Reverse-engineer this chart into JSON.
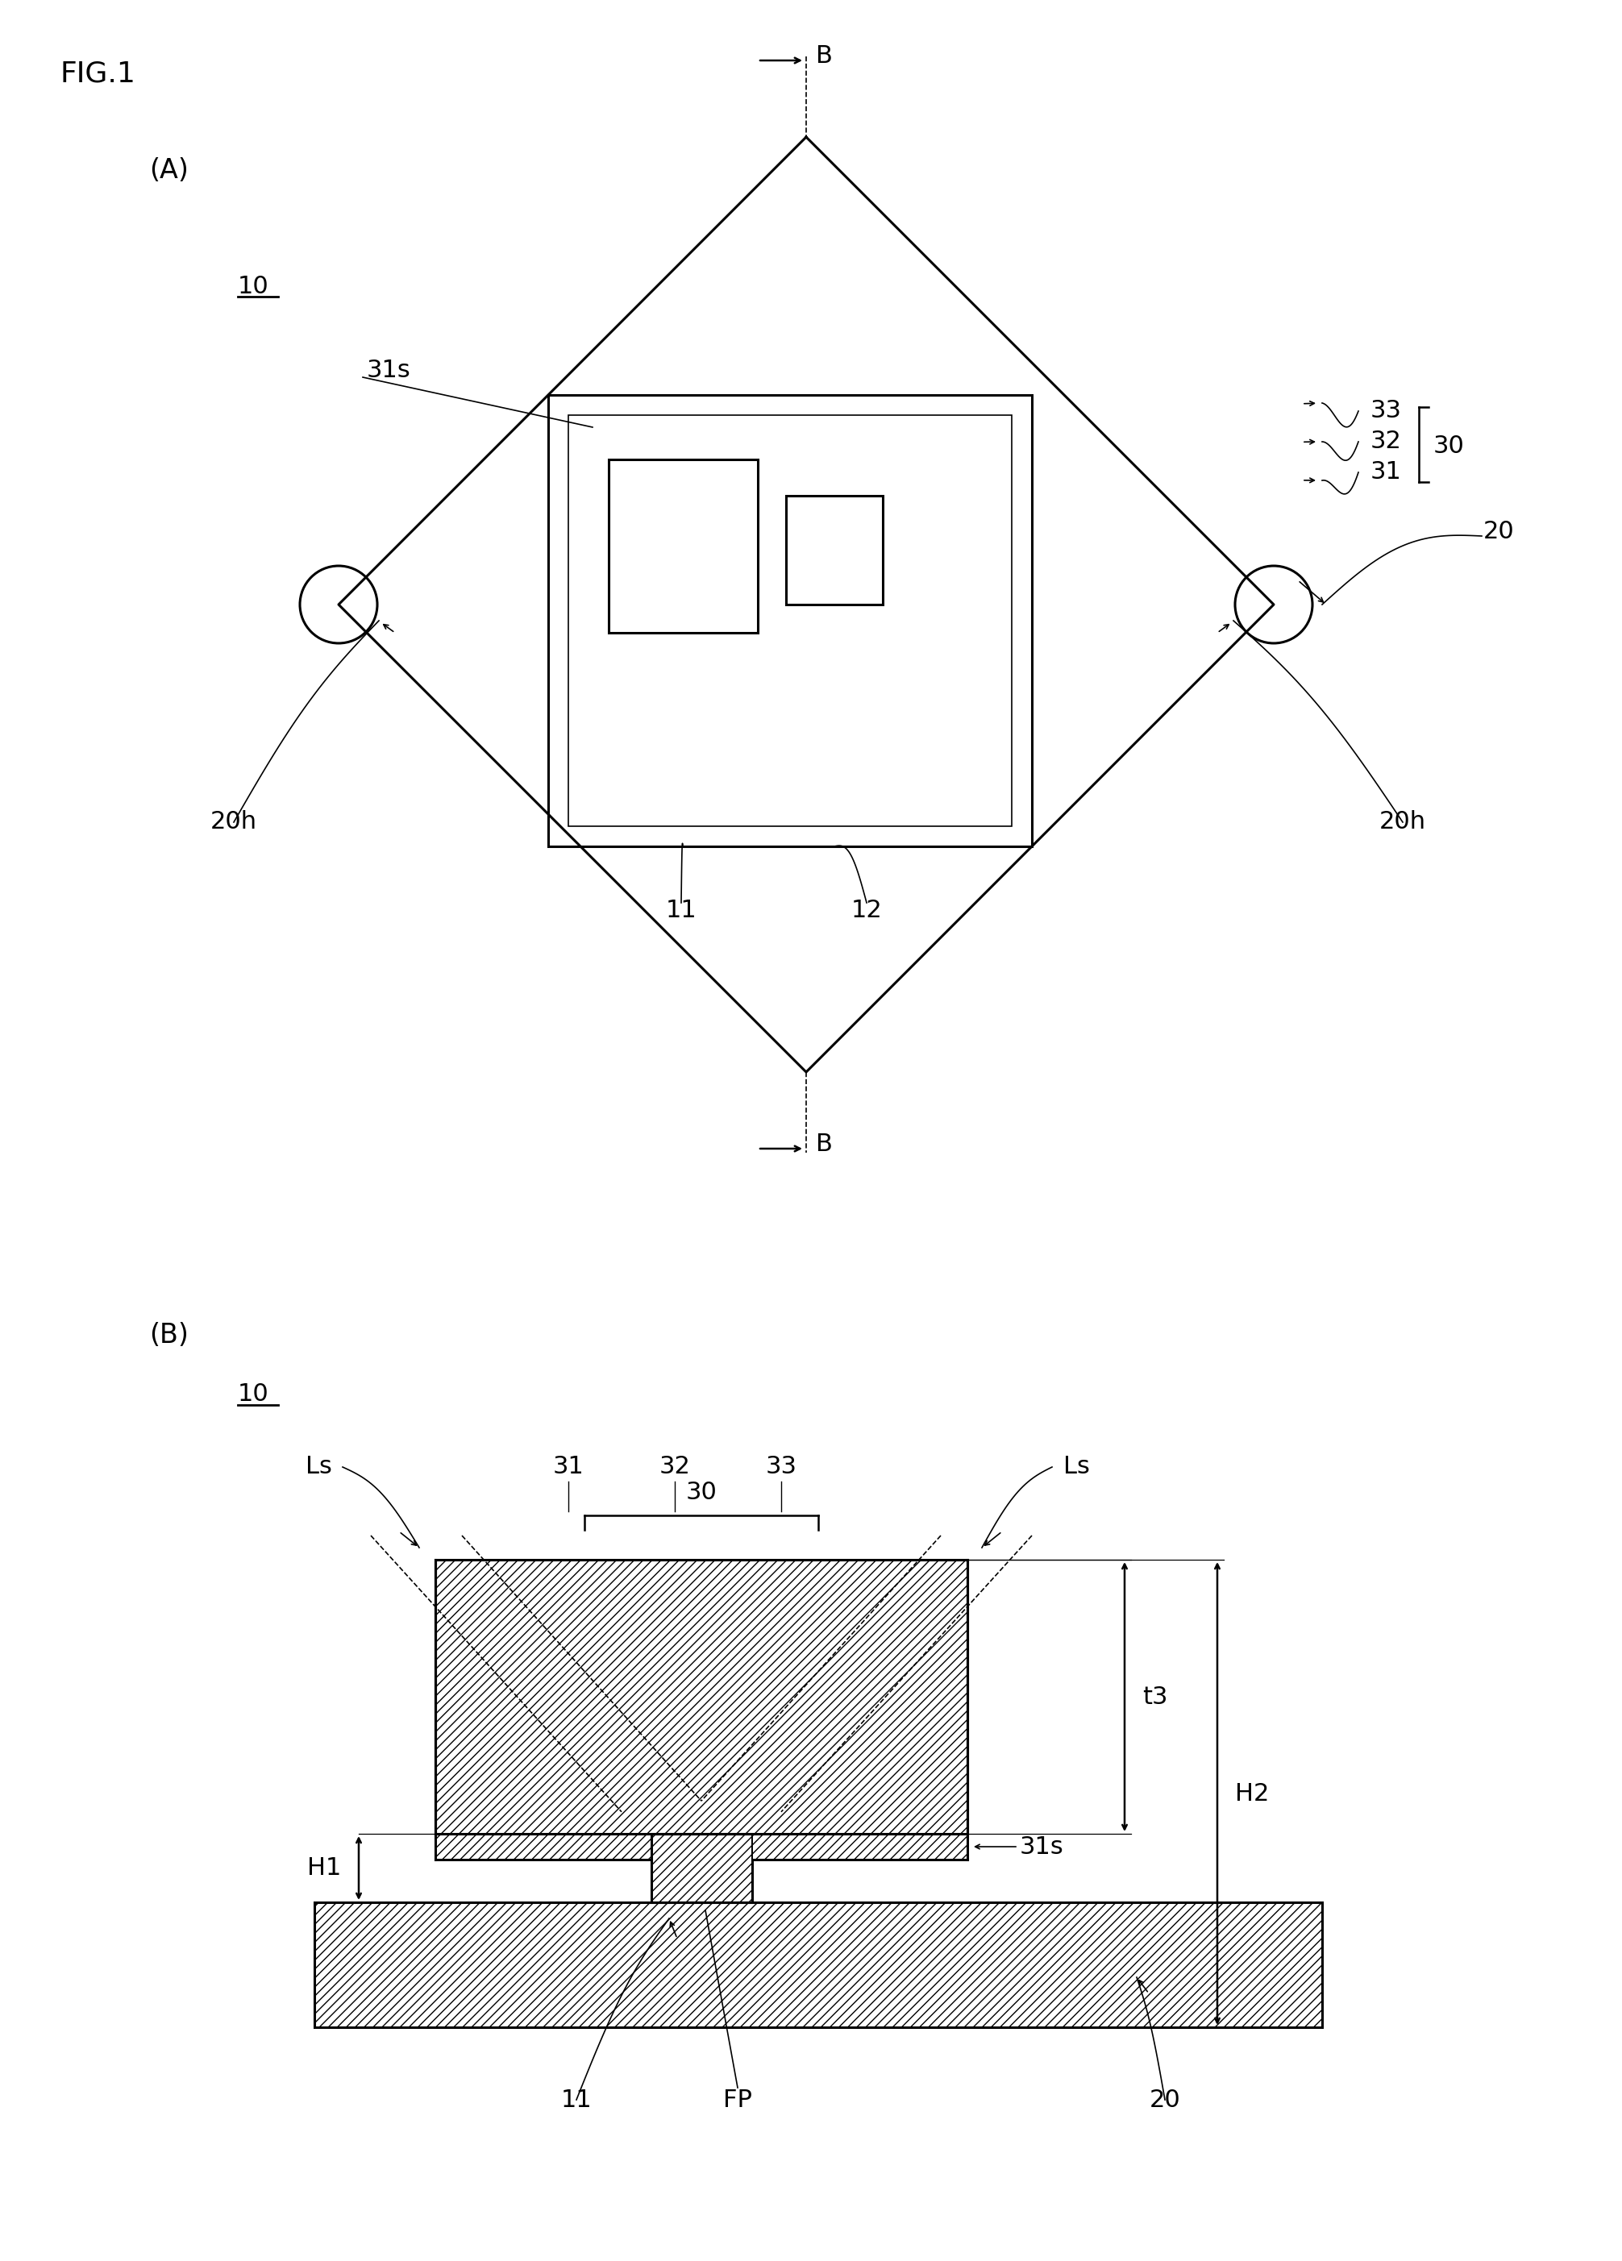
{
  "fig_label": "FIG.1",
  "panel_A_label": "(A)",
  "panel_B_label": "(B)",
  "background_color": "#ffffff",
  "line_color": "#000000",
  "lw": 1.8,
  "lw_thick": 2.2,
  "lw_thin": 1.2,
  "font_size": 22,
  "labels": {
    "10_A": "10",
    "20_A": "20",
    "20h_left": "20h",
    "20h_right": "20h",
    "11_A": "11",
    "12_A": "12",
    "31s_A": "31s",
    "30_A": "30",
    "31_A": "31",
    "32_A": "32",
    "33_A": "33",
    "B_top": "B",
    "B_bottom": "B",
    "10_B": "10",
    "Ls_left": "Ls",
    "Ls_right": "Ls",
    "30_B": "30",
    "31_B": "31",
    "32_B": "32",
    "33_B": "33",
    "31s_B": "31s",
    "H1": "H1",
    "H2": "H2",
    "t3": "t3",
    "11_B": "11",
    "FP": "FP",
    "20_B": "20"
  }
}
